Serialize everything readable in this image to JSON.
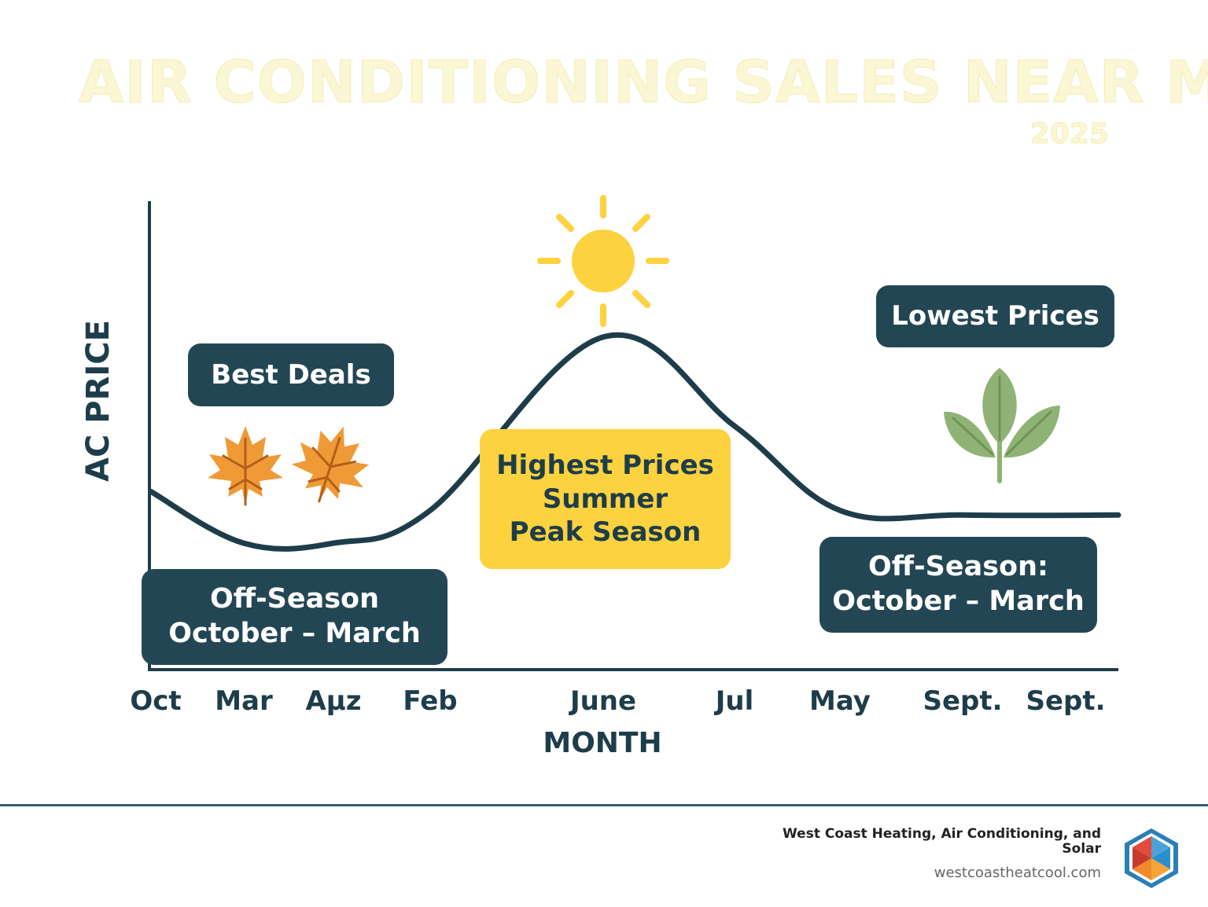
{
  "header": {
    "title": "AIR CONDITIONING SALES NEAR ME",
    "subtitle": "2025"
  },
  "chart_data": {
    "type": "line",
    "xlabel": "MONTH",
    "ylabel": "AC PRICE",
    "categories": [
      "Oct",
      "Mar",
      "Aμz",
      "Feb",
      "June",
      "Jul",
      "May",
      "Sept.",
      "Sept."
    ],
    "series": [
      {
        "values": [
          0.38,
          0.27,
          0.27,
          0.34,
          0.71,
          0.52,
          0.34,
          0.33,
          0.33
        ]
      }
    ],
    "ylim": [
      0,
      1
    ],
    "grid": false,
    "annotations": {
      "best_deals": "Best Deals",
      "highest": [
        "Highest Prices",
        "Summer",
        "Peak Season"
      ],
      "lowest": "Lowest Prices",
      "off_season_left": [
        "Off-Season",
        "October – March"
      ],
      "off_season_right": [
        "Off-Season:",
        "October – March"
      ]
    }
  },
  "icons": {
    "sun": "sun-icon",
    "leaves": "maple-leaf-icon",
    "sprout": "sprout-icon"
  },
  "colors": {
    "curve": "#1e3d4a",
    "dark_box": "#234654",
    "yellow_box": "#fdd23f",
    "sun": "#fdd23f",
    "leaf": "#ef9a36",
    "sprout": "#8fb374",
    "title": "#fbf6d4"
  },
  "footer": {
    "company": "West Coast Heating, Air Conditioning, and Solar",
    "url": "westcoastheatcool.com"
  }
}
